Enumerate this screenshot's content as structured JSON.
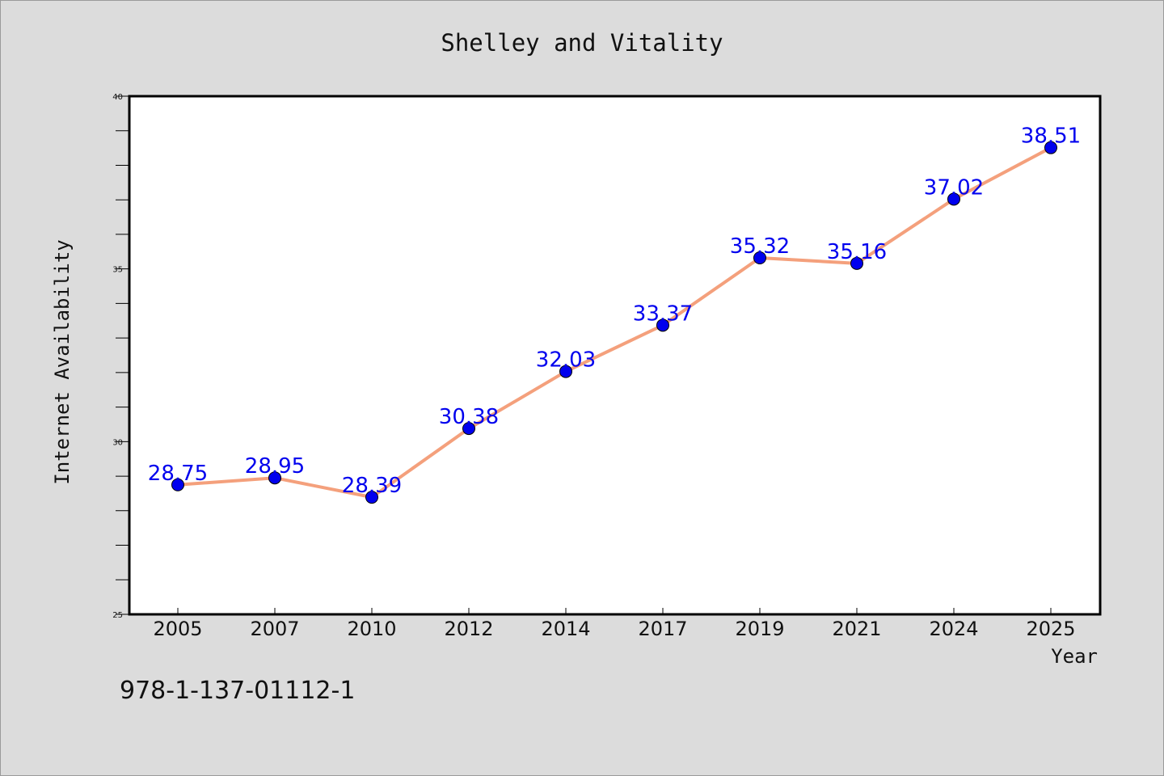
{
  "chart_data": {
    "type": "line",
    "title": "Shelley and Vitality",
    "xlabel": "Year",
    "ylabel": "Internet Availability",
    "categories": [
      "2005",
      "2007",
      "2010",
      "2012",
      "2014",
      "2017",
      "2019",
      "2021",
      "2024",
      "2025"
    ],
    "series": [
      {
        "values": [
          28.75,
          28.95,
          28.39,
          30.38,
          32.03,
          33.37,
          35.32,
          35.16,
          37.02,
          38.51
        ],
        "line_color": "#f4a07c",
        "marker_color": "#0000ee",
        "label_color": "#0000ee"
      }
    ],
    "ylim": [
      25,
      40
    ],
    "yticks": [
      "25",
      "30",
      "35",
      "40"
    ],
    "grid": false,
    "legend": "none"
  },
  "annotation": {
    "isbn": "978-1-137-01112-1"
  }
}
